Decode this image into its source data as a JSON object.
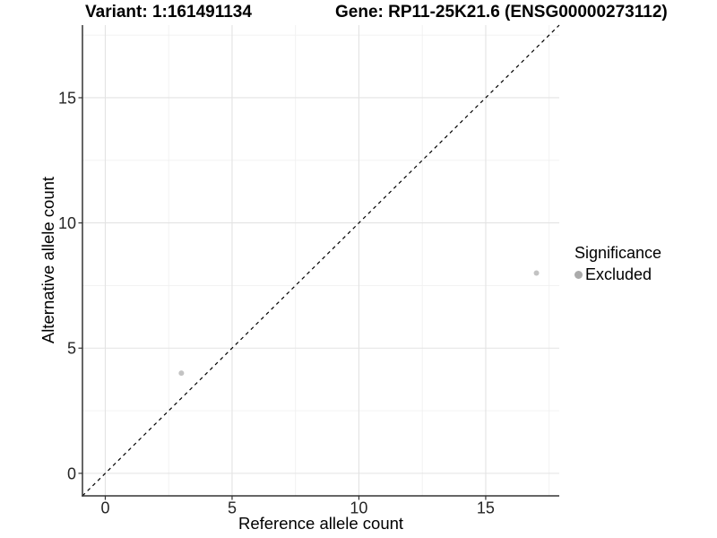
{
  "header": {
    "variant_title": "Variant: 1:161491134",
    "gene_title": "Gene: RP11-25K21.6 (ENSG00000273112)"
  },
  "chart_data": {
    "type": "scatter",
    "title_left": "Variant: 1:161491134",
    "title_right": "Gene: RP11-25K21.6 (ENSG00000273112)",
    "xlabel": "Reference allele count",
    "ylabel": "Alternative allele count",
    "xlim": [
      -0.9,
      17.9
    ],
    "ylim": [
      -0.9,
      17.9
    ],
    "x_ticks": [
      0,
      5,
      10,
      15
    ],
    "y_ticks": [
      0,
      5,
      10,
      15
    ],
    "x_minor": [
      2.5,
      7.5,
      12.5,
      17.5
    ],
    "y_minor": [
      2.5,
      7.5,
      12.5,
      17.5
    ],
    "grid": true,
    "identity_line": {
      "slope": 1,
      "intercept": 0,
      "style": "dashed",
      "color": "#000000"
    },
    "series": [
      {
        "name": "Excluded",
        "points": [
          [
            3,
            4
          ],
          [
            17,
            8
          ]
        ],
        "color": "#c3c3c3"
      }
    ],
    "legend": {
      "position": "right",
      "title": "Significance",
      "entries": [
        {
          "label": "Excluded",
          "color": "#ababab",
          "marker": "dot-icon"
        }
      ]
    },
    "style": {
      "grid_major": "#e3e3e3",
      "grid_minor": "#f0f0f0",
      "axis_line": "#333333",
      "tick_color": "#333333",
      "tick_label_size": 18
    }
  }
}
